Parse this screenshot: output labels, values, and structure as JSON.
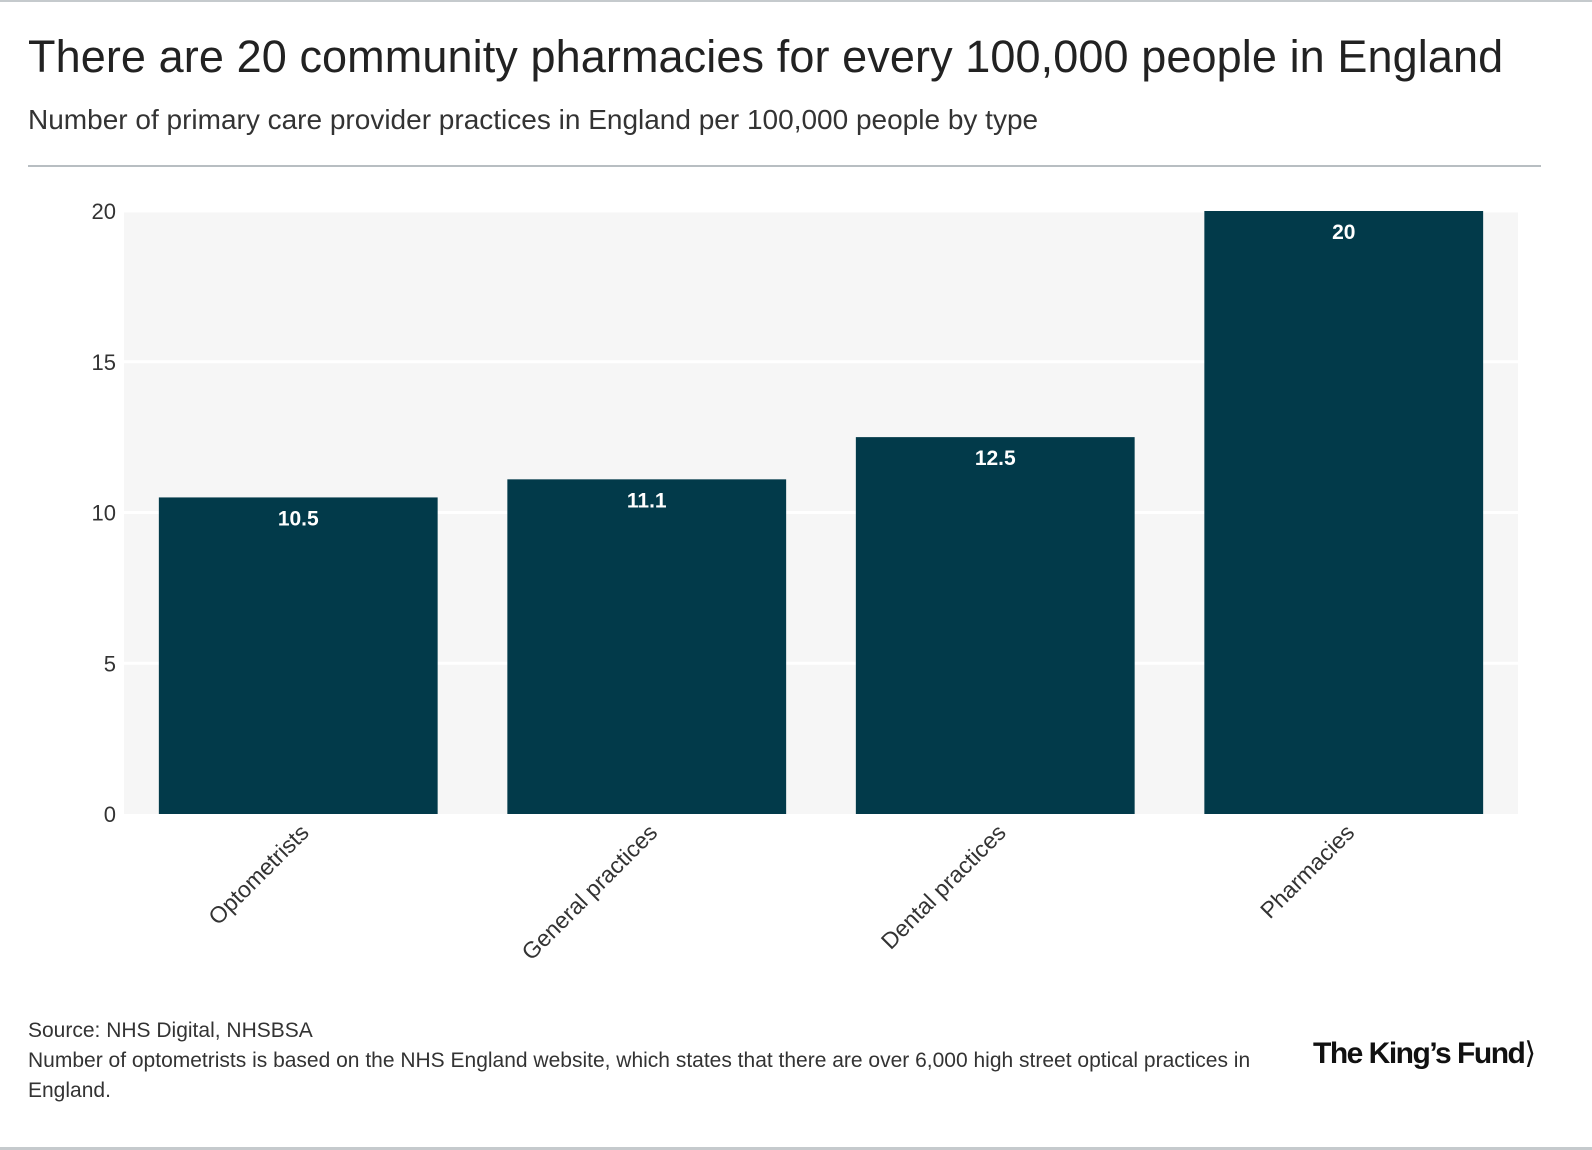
{
  "title": "There are 20 community pharmacies for every 100,000 people in England",
  "subtitle": "Number of primary care provider practices in England per 100,000 people by type",
  "chart_data": {
    "type": "bar",
    "categories": [
      "Optometrists",
      "General practices",
      "Dental practices",
      "Pharmacies"
    ],
    "values": [
      10.5,
      11.1,
      12.5,
      20
    ],
    "data_labels": [
      "10.5",
      "11.1",
      "12.5",
      "20"
    ],
    "ylim": [
      0,
      20
    ],
    "yticks": [
      0,
      5,
      10,
      15,
      20
    ],
    "ytick_labels": [
      "0",
      "5",
      "10",
      "15",
      "20"
    ],
    "xlabel": "",
    "ylabel": "",
    "grid": true,
    "bar_color": "#023a4a",
    "plot_background": "#f6f6f6",
    "label_color": "#ffffff"
  },
  "footer": {
    "source": "Source: NHS Digital, NHSBSA",
    "note": "Number of optometrists is based on the NHS England website, which states that there are over 6,000 high street optical practices in England."
  },
  "logo": {
    "text": "The King’s Fund"
  }
}
